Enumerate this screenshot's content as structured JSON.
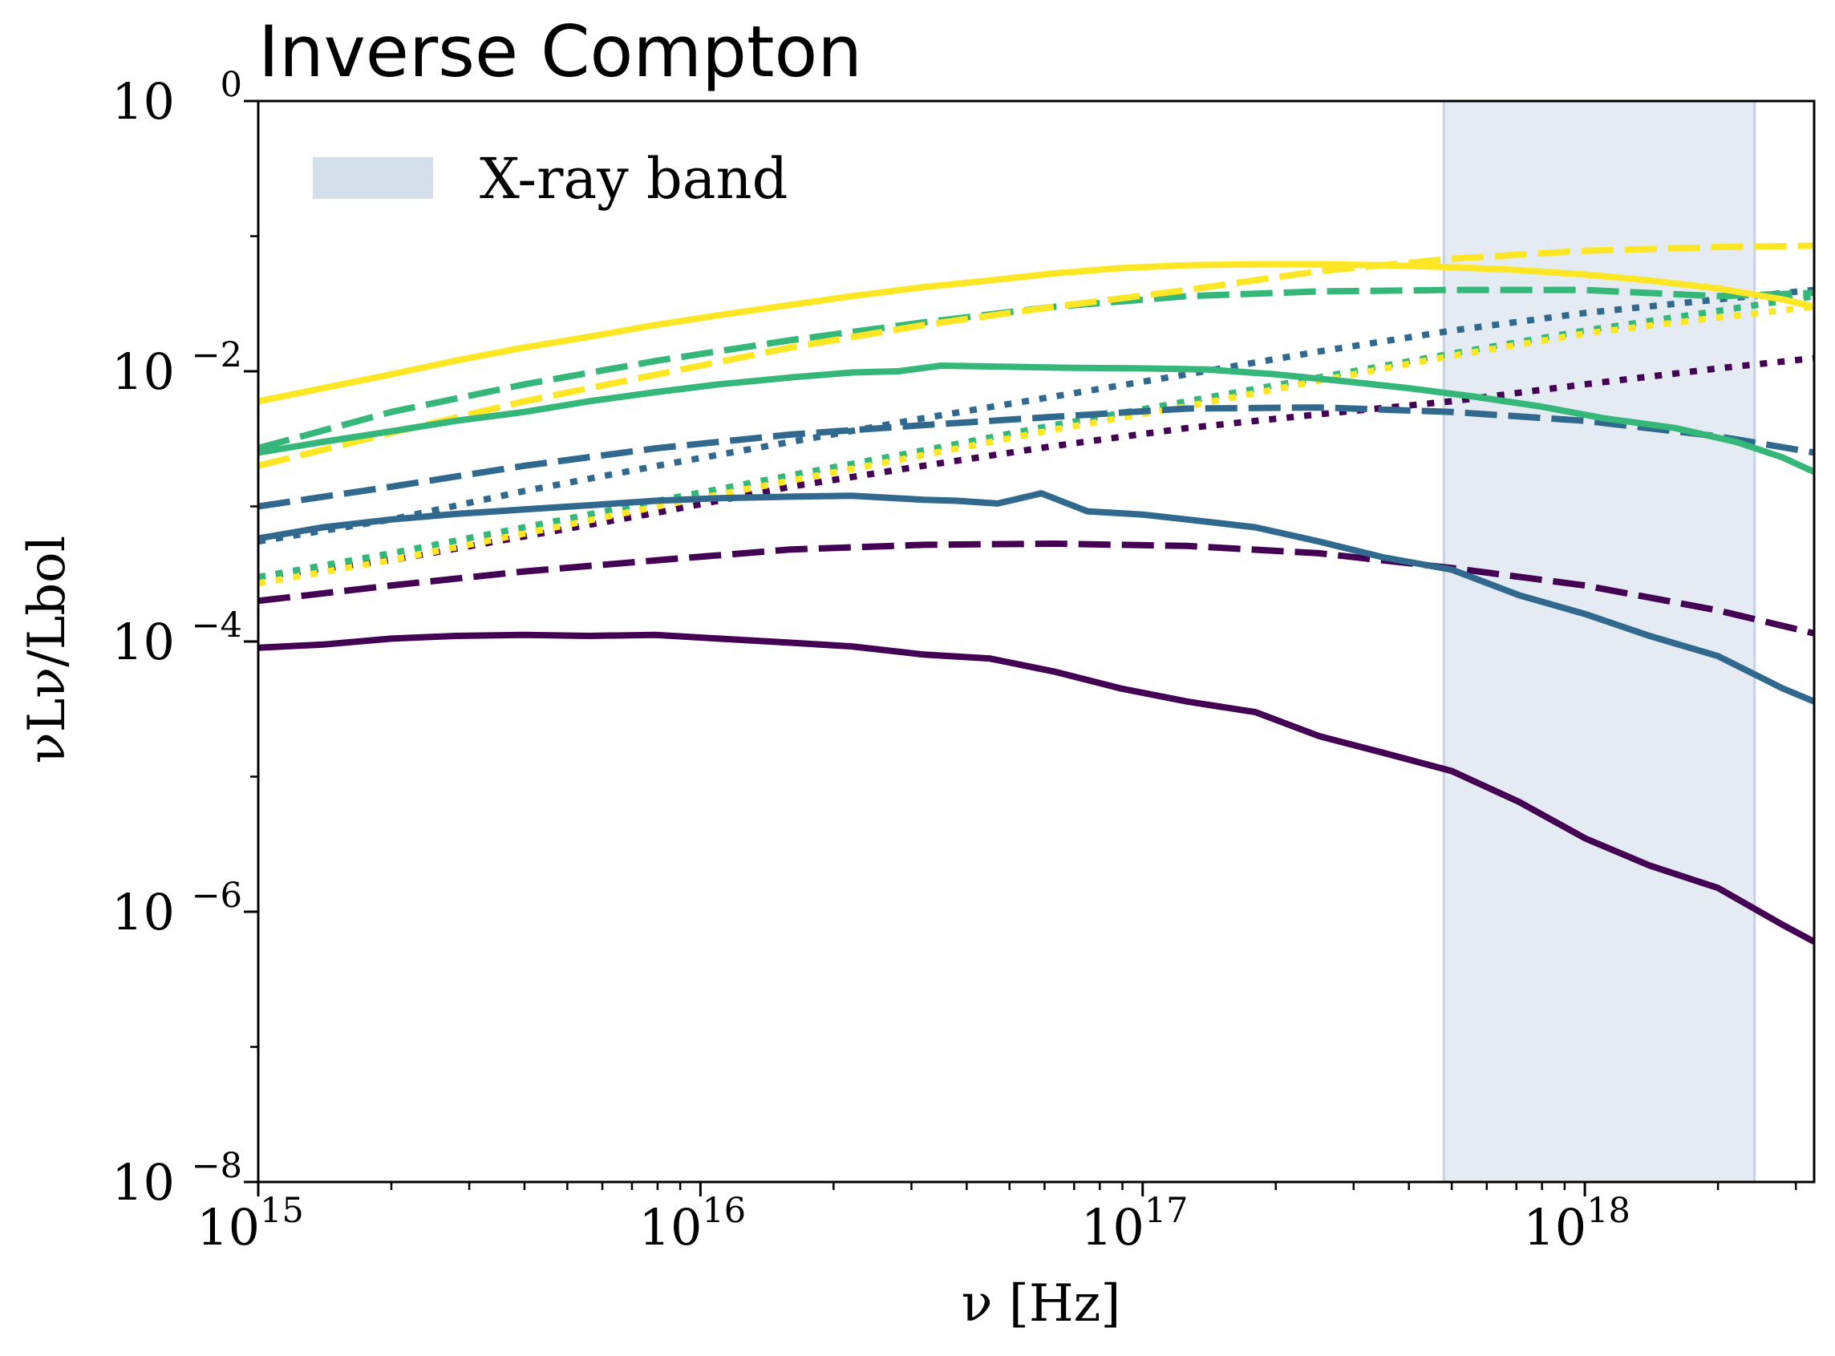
{
  "chart_data": {
    "type": "line",
    "title": "Inverse Compton",
    "xlabel": "ν [Hz]",
    "ylabel": "νLν/Lbol",
    "xscale": "log",
    "yscale": "log",
    "xlim": [
      1000000000000000.0,
      3.3e+18
    ],
    "ylim": [
      1e-08,
      1
    ],
    "x_ticks": [
      {
        "value": 1000000000000000.0,
        "base": "10",
        "exp": "15"
      },
      {
        "value": 1e+16,
        "base": "10",
        "exp": "16"
      },
      {
        "value": 1e+17,
        "base": "10",
        "exp": "17"
      },
      {
        "value": 1e+18,
        "base": "10",
        "exp": "18"
      }
    ],
    "y_ticks": [
      {
        "value": 1,
        "base": "10",
        "exp": "0"
      },
      {
        "value": 0.01,
        "base": "10",
        "exp": "−2"
      },
      {
        "value": 0.0001,
        "base": "10",
        "exp": "−4"
      },
      {
        "value": 1e-06,
        "base": "10",
        "exp": "−6"
      },
      {
        "value": 1e-08,
        "base": "10",
        "exp": "−8"
      }
    ],
    "shaded_band": {
      "label": "X-ray band",
      "x_start": 4.8e+17,
      "x_end": 2.42e+18,
      "color": "#d5deeb"
    },
    "legend_position": "upper-left",
    "series": [
      {
        "name": "purple-solid",
        "color": "#440154",
        "style": "solid",
        "x": [
          1000000000000000.0,
          1400000000000000.0,
          2000000000000000.0,
          2800000000000000.0,
          4000000000000000.0,
          5600000000000000.0,
          7900000000000000.0,
          1.1e+16,
          1.6e+16,
          2.2e+16,
          3.2e+16,
          4.5e+16,
          6.3e+16,
          8.9e+16,
          1.26e+17,
          1.8e+17,
          2.5e+17,
          3.5e+17,
          5e+17,
          7.1e+17,
          1e+18,
          1.4e+18,
          2e+18,
          2.8e+18,
          3.3e+18
        ],
        "y": [
          9e-05,
          9.5e-05,
          0.000105,
          0.00011,
          0.000112,
          0.00011,
          0.000112,
          0.000105,
          9.8e-05,
          9.2e-05,
          8e-05,
          7.5e-05,
          6e-05,
          4.5e-05,
          3.6e-05,
          3e-05,
          2e-05,
          1.5e-05,
          1.1e-05,
          6.5e-06,
          3.5e-06,
          2.2e-06,
          1.5e-06,
          8e-07,
          6e-07
        ]
      },
      {
        "name": "purple-dashed",
        "color": "#440154",
        "style": "dashed",
        "x": [
          1000000000000000.0,
          2000000000000000.0,
          4000000000000000.0,
          8000000000000000.0,
          1.6e+16,
          3.2e+16,
          6.3e+16,
          1.26e+17,
          2.5e+17,
          5e+17,
          1e+18,
          2e+18,
          3.3e+18
        ],
        "y": [
          0.0002,
          0.00026,
          0.00033,
          0.0004,
          0.00048,
          0.00052,
          0.00053,
          0.00051,
          0.00045,
          0.00035,
          0.00026,
          0.00017,
          0.000115
        ]
      },
      {
        "name": "purple-dotted",
        "color": "#440154",
        "style": "dotted",
        "x": [
          1000000000000000.0,
          2000000000000000.0,
          4000000000000000.0,
          8000000000000000.0,
          1.6e+16,
          3.2e+16,
          6.3e+16,
          1.26e+17,
          2.5e+17,
          5e+17,
          1e+18,
          2e+18,
          3.3e+18
        ],
        "y": [
          0.0003,
          0.0004,
          0.0006,
          0.0009,
          0.0014,
          0.002,
          0.0028,
          0.0038,
          0.0048,
          0.006,
          0.008,
          0.0105,
          0.0125
        ]
      },
      {
        "name": "blue-solid",
        "color": "#31688e",
        "style": "solid",
        "x": [
          1000000000000000.0,
          1400000000000000.0,
          2000000000000000.0,
          2800000000000000.0,
          4000000000000000.0,
          5600000000000000.0,
          7900000000000000.0,
          1.1e+16,
          1.6e+16,
          2.2e+16,
          3.2e+16,
          3.8e+16,
          4.7e+16,
          5.9e+16,
          7.5e+16,
          1e+17,
          1.26e+17,
          1.8e+17,
          2.5e+17,
          3.5e+17,
          5e+17,
          7.1e+17,
          1e+18,
          1.4e+18,
          2e+18,
          2.8e+18,
          3.3e+18
        ],
        "y": [
          0.00058,
          0.0007,
          0.0008,
          0.00088,
          0.00095,
          0.00102,
          0.0011,
          0.00115,
          0.00118,
          0.0012,
          0.00112,
          0.0011,
          0.00105,
          0.00125,
          0.00092,
          0.00087,
          0.0008,
          0.0007,
          0.00055,
          0.00042,
          0.00034,
          0.00022,
          0.00016,
          0.00011,
          7.8e-05,
          4.5e-05,
          3.6e-05
        ]
      },
      {
        "name": "blue-dashed",
        "color": "#31688e",
        "style": "dashed",
        "x": [
          1000000000000000.0,
          2000000000000000.0,
          4000000000000000.0,
          8000000000000000.0,
          1.6e+16,
          3.2e+16,
          6.3e+16,
          1.26e+17,
          2.5e+17,
          5e+17,
          1e+18,
          2e+18,
          3.3e+18
        ],
        "y": [
          0.001,
          0.0014,
          0.002,
          0.0027,
          0.0034,
          0.004,
          0.0046,
          0.0053,
          0.0054,
          0.005,
          0.0043,
          0.0033,
          0.0025
        ]
      },
      {
        "name": "blue-dotted",
        "color": "#31688e",
        "style": "dotted",
        "x": [
          1000000000000000.0,
          2000000000000000.0,
          4000000000000000.0,
          8000000000000000.0,
          1.6e+16,
          3.2e+16,
          6.3e+16,
          1.26e+17,
          2.5e+17,
          5e+17,
          1e+18,
          2e+18,
          3.3e+18
        ],
        "y": [
          0.00055,
          0.0008,
          0.0013,
          0.002,
          0.003,
          0.0045,
          0.0065,
          0.0095,
          0.014,
          0.02,
          0.027,
          0.034,
          0.04
        ]
      },
      {
        "name": "green-solid",
        "color": "#35b779",
        "style": "solid",
        "x": [
          1000000000000000.0,
          1400000000000000.0,
          2000000000000000.0,
          2800000000000000.0,
          4000000000000000.0,
          5600000000000000.0,
          7900000000000000.0,
          1.1e+16,
          1.6e+16,
          2.2e+16,
          2.8e+16,
          3.5e+16,
          5e+16,
          7e+16,
          1e+17,
          1.4e+17,
          2e+17,
          2.8e+17,
          4e+17,
          5.6e+17,
          7.9e+17,
          1.1e+18,
          1.6e+18,
          2.2e+18,
          2.8e+18,
          3.3e+18
        ],
        "y": [
          0.0025,
          0.003,
          0.0036,
          0.0043,
          0.005,
          0.006,
          0.007,
          0.008,
          0.009,
          0.0098,
          0.01,
          0.011,
          0.0108,
          0.0106,
          0.0105,
          0.0103,
          0.0095,
          0.0085,
          0.0075,
          0.0065,
          0.0055,
          0.0045,
          0.0038,
          0.003,
          0.0023,
          0.0018
        ]
      },
      {
        "name": "green-dashed",
        "color": "#35b779",
        "style": "dashed",
        "x": [
          1000000000000000.0,
          2000000000000000.0,
          4000000000000000.0,
          8000000000000000.0,
          1.6e+16,
          3.2e+16,
          6.3e+16,
          1.26e+17,
          2.5e+17,
          5e+17,
          1e+18,
          2e+18,
          3.3e+18
        ],
        "y": [
          0.0027,
          0.005,
          0.008,
          0.012,
          0.017,
          0.023,
          0.03,
          0.036,
          0.039,
          0.04,
          0.04,
          0.036,
          0.038
        ]
      },
      {
        "name": "green-dotted",
        "color": "#35b779",
        "style": "dotted",
        "x": [
          1000000000000000.0,
          2000000000000000.0,
          4000000000000000.0,
          8000000000000000.0,
          1.6e+16,
          3.2e+16,
          6.3e+16,
          1.26e+17,
          2.5e+17,
          5e+17,
          1e+18,
          2e+18,
          3.3e+18
        ],
        "y": [
          0.0003,
          0.00045,
          0.0007,
          0.0011,
          0.0017,
          0.0026,
          0.004,
          0.006,
          0.009,
          0.0135,
          0.02,
          0.028,
          0.036
        ]
      },
      {
        "name": "yellow-solid",
        "color": "#fde725",
        "style": "solid",
        "x": [
          1000000000000000.0,
          1400000000000000.0,
          2000000000000000.0,
          2800000000000000.0,
          4000000000000000.0,
          5600000000000000.0,
          7900000000000000.0,
          1.1e+16,
          1.6e+16,
          2.2e+16,
          3.2e+16,
          4.5e+16,
          6.3e+16,
          8.9e+16,
          1.26e+17,
          1.8e+17,
          2.5e+17,
          3.5e+17,
          5e+17,
          7.1e+17,
          1e+18,
          1.4e+18,
          2e+18,
          2.8e+18,
          3.3e+18
        ],
        "y": [
          0.006,
          0.0075,
          0.0095,
          0.012,
          0.015,
          0.018,
          0.022,
          0.026,
          0.031,
          0.036,
          0.042,
          0.047,
          0.053,
          0.058,
          0.061,
          0.062,
          0.062,
          0.061,
          0.059,
          0.056,
          0.052,
          0.047,
          0.041,
          0.034,
          0.03
        ]
      },
      {
        "name": "yellow-dashed",
        "color": "#fde725",
        "style": "dashed",
        "x": [
          1000000000000000.0,
          2000000000000000.0,
          4000000000000000.0,
          8000000000000000.0,
          1.6e+16,
          3.2e+16,
          6.3e+16,
          1.26e+17,
          2.5e+17,
          5e+17,
          1e+18,
          2e+18,
          3.3e+18
        ],
        "y": [
          0.002,
          0.0035,
          0.006,
          0.0095,
          0.015,
          0.022,
          0.03,
          0.04,
          0.055,
          0.068,
          0.078,
          0.083,
          0.085
        ]
      },
      {
        "name": "yellow-dotted",
        "color": "#fde725",
        "style": "dotted",
        "x": [
          1000000000000000.0,
          2000000000000000.0,
          4000000000000000.0,
          8000000000000000.0,
          1.6e+16,
          3.2e+16,
          6.3e+16,
          1.26e+17,
          2.5e+17,
          5e+17,
          1e+18,
          2e+18,
          3.3e+18
        ],
        "y": [
          0.00027,
          0.0004,
          0.00063,
          0.001,
          0.00155,
          0.0024,
          0.0037,
          0.0055,
          0.0085,
          0.013,
          0.019,
          0.025,
          0.03
        ]
      }
    ]
  }
}
